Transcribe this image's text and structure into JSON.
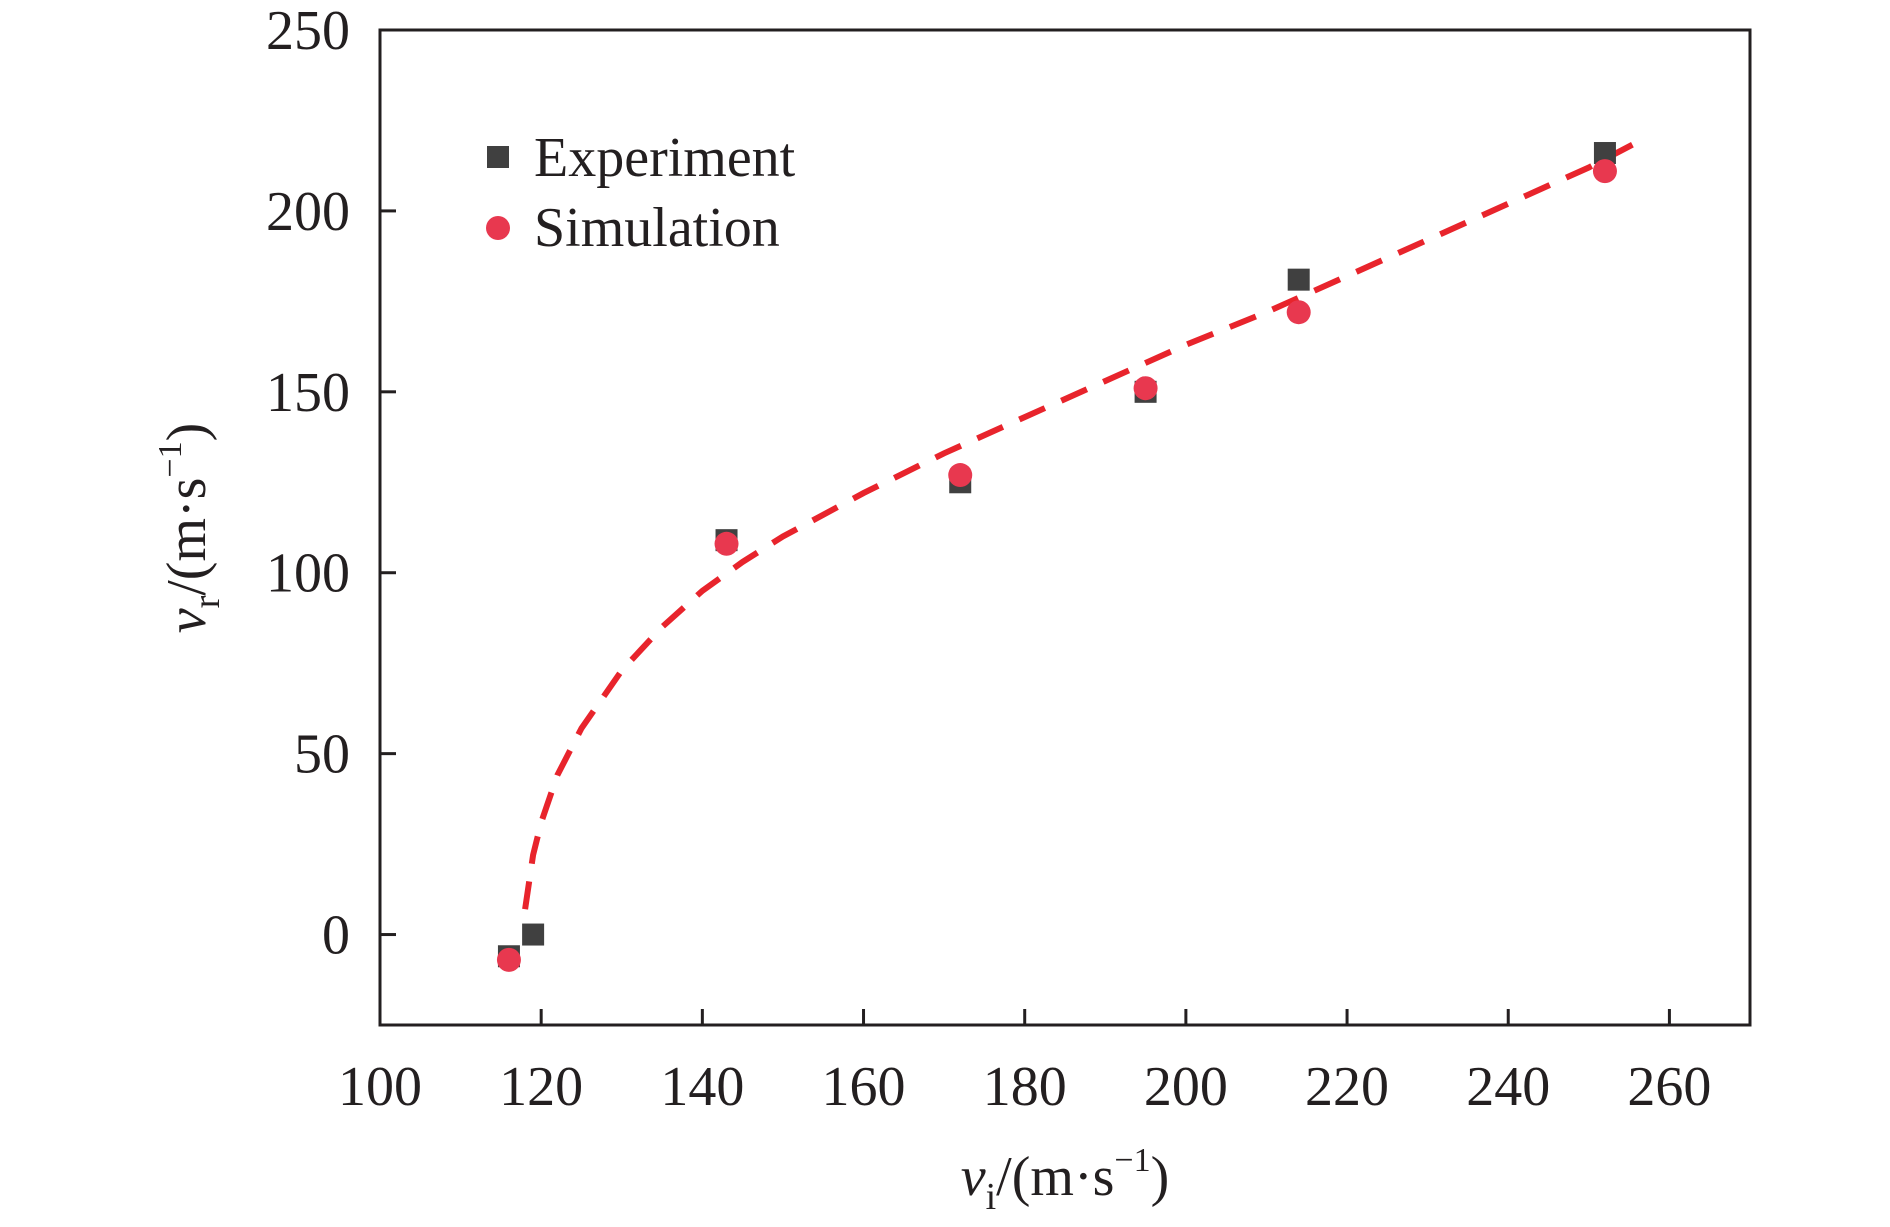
{
  "chart_data": {
    "type": "scatter",
    "title": "",
    "xlabel": {
      "var": "v",
      "sub": "i",
      "unit_open": "/(m·s",
      "sup": "−1",
      "unit_close": ")"
    },
    "ylabel": {
      "var": "v",
      "sub": "r",
      "unit_open": "/(m·s",
      "sup": "−1",
      "unit_close": ")"
    },
    "xlim": [
      100,
      270
    ],
    "ylim": [
      -25,
      250
    ],
    "xticks": [
      100,
      120,
      140,
      160,
      180,
      200,
      220,
      240,
      260
    ],
    "yticks": [
      0,
      50,
      100,
      150,
      200,
      250
    ],
    "grid": false,
    "legend_position": "top-left",
    "series": [
      {
        "name": "Experiment",
        "marker": "square",
        "color": "#404040",
        "points": [
          {
            "x": 116,
            "y": -6
          },
          {
            "x": 119,
            "y": 0
          },
          {
            "x": 143,
            "y": 109
          },
          {
            "x": 172,
            "y": 125
          },
          {
            "x": 195,
            "y": 150
          },
          {
            "x": 214,
            "y": 181
          },
          {
            "x": 252,
            "y": 216
          }
        ]
      },
      {
        "name": "Simulation",
        "marker": "circle",
        "color": "#e8384f",
        "points": [
          {
            "x": 116,
            "y": -7
          },
          {
            "x": 143,
            "y": 108
          },
          {
            "x": 172,
            "y": 127
          },
          {
            "x": 195,
            "y": 151
          },
          {
            "x": 214,
            "y": 172
          },
          {
            "x": 252,
            "y": 211
          }
        ]
      }
    ],
    "fit_curve": {
      "style": "dashed",
      "color": "#e8242c",
      "points": [
        {
          "x": 118,
          "y": 7
        },
        {
          "x": 119,
          "y": 22
        },
        {
          "x": 120,
          "y": 31
        },
        {
          "x": 122,
          "y": 44
        },
        {
          "x": 125,
          "y": 57
        },
        {
          "x": 130,
          "y": 73
        },
        {
          "x": 135,
          "y": 85
        },
        {
          "x": 140,
          "y": 95
        },
        {
          "x": 145,
          "y": 103
        },
        {
          "x": 150,
          "y": 110
        },
        {
          "x": 160,
          "y": 122
        },
        {
          "x": 170,
          "y": 133
        },
        {
          "x": 180,
          "y": 143
        },
        {
          "x": 190,
          "y": 153
        },
        {
          "x": 200,
          "y": 163
        },
        {
          "x": 210,
          "y": 172
        },
        {
          "x": 220,
          "y": 182
        },
        {
          "x": 230,
          "y": 192
        },
        {
          "x": 240,
          "y": 202
        },
        {
          "x": 250,
          "y": 212
        },
        {
          "x": 256,
          "y": 219
        }
      ]
    }
  }
}
